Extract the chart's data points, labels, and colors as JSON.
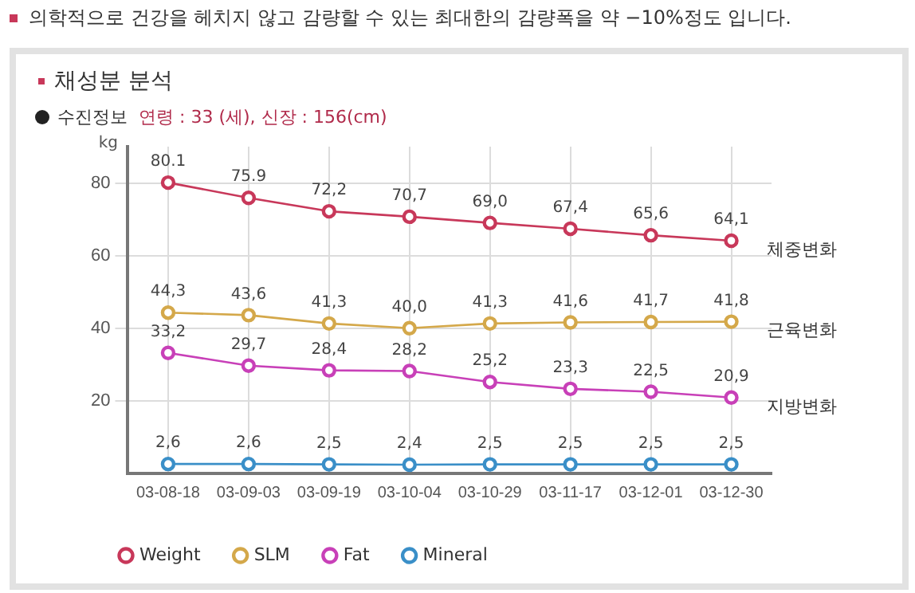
{
  "chart_data": {
    "type": "line",
    "title": "채성분 분석",
    "subtitle": "수진정보  연령 : 33 (세),  신장 : 156(cm)",
    "ylabel": "kg",
    "annotations": [
      "의학적으로 건강을 헤치지 않고 감량할 수 있는 최대한의 감량폭을 약 −10%정도 입니다.",
      {
        "text": "체중변화",
        "x": "03-12-30",
        "y": 64.1
      },
      {
        "text": "근육변화",
        "x": "03-12-30",
        "y": 41.8
      },
      {
        "text": "지방변화",
        "x": "03-12-30",
        "y": 20.9
      }
    ],
    "categories": [
      "03-08-18",
      "03-09-03",
      "03-09-19",
      "03-10-04",
      "03-10-29",
      "03-11-17",
      "03-12-01",
      "03-12-30"
    ],
    "series": [
      {
        "name": "Weight",
        "color": "#c8385a",
        "values": [
          80.1,
          75.9,
          72.2,
          70.7,
          69.0,
          67.4,
          65.6,
          64.1
        ],
        "value_labels": [
          "80.1",
          "75.9",
          "72,2",
          "70,7",
          "69,0",
          "67,4",
          "65,6",
          "64,1"
        ]
      },
      {
        "name": "SLM",
        "color": "#d4a84a",
        "values": [
          44.3,
          43.6,
          41.3,
          40.0,
          41.3,
          41.6,
          41.7,
          41.8
        ],
        "value_labels": [
          "44,3",
          "43,6",
          "41,3",
          "40,0",
          "41,3",
          "41,6",
          "41,7",
          "41,8"
        ]
      },
      {
        "name": "Fat",
        "color": "#c840b8",
        "values": [
          33.2,
          29.7,
          28.4,
          28.2,
          25.2,
          23.3,
          22.5,
          20.9
        ],
        "value_labels": [
          "33,2",
          "29,7",
          "28,4",
          "28,2",
          "25,2",
          "23,3",
          "22,5",
          "20,9"
        ]
      },
      {
        "name": "Mineral",
        "color": "#3a8fc8",
        "values": [
          2.6,
          2.6,
          2.5,
          2.4,
          2.5,
          2.5,
          2.5,
          2.5
        ],
        "value_labels": [
          "2,6",
          "2,6",
          "2,5",
          "2,4",
          "2,5",
          "2,5",
          "2,5",
          "2,5"
        ]
      }
    ],
    "ylim": [
      0,
      90
    ],
    "yticks": [
      20,
      40,
      60,
      80
    ],
    "grid": true,
    "legend": "bottom",
    "marker": "circle",
    "line_style": "solid"
  }
}
